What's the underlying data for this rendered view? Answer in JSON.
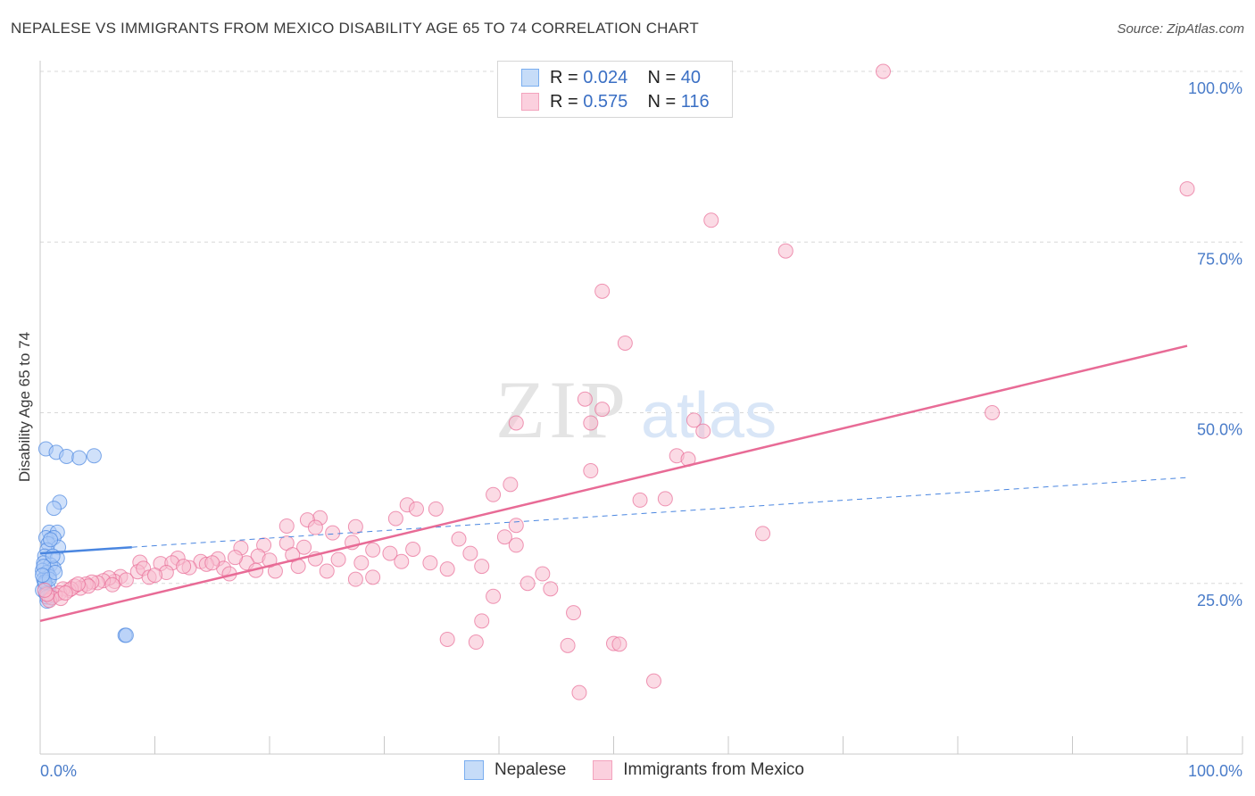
{
  "title": "NEPALESE VS IMMIGRANTS FROM MEXICO DISABILITY AGE 65 TO 74 CORRELATION CHART",
  "source": "Source: ZipAtlas.com",
  "watermark": {
    "zip": "ZIP",
    "atlas": "atlas"
  },
  "legend": {
    "rows": [
      {
        "r_label": "R =",
        "r_value": "0.024",
        "n_label": "N =",
        "n_value": "40",
        "color": "#7aaef0"
      },
      {
        "r_label": "R =",
        "r_value": "0.575",
        "n_label": "N =",
        "n_value": "116",
        "color": "#f3a3bd"
      }
    ]
  },
  "bottom_legend": [
    {
      "label": "Nepalese",
      "color": "#7aaef0"
    },
    {
      "label": "Immigrants from Mexico",
      "color": "#f3a3bd"
    }
  ],
  "chart_data": {
    "type": "scatter",
    "title": "NEPALESE VS IMMIGRANTS FROM MEXICO DISABILITY AGE 65 TO 74 CORRELATION CHART",
    "xlabel": "",
    "ylabel": "Disability Age 65 to 74",
    "xlim": [
      0,
      100
    ],
    "ylim": [
      0,
      100
    ],
    "x_tick_labels": [
      "0.0%",
      "100.0%"
    ],
    "y_ticks": [
      25,
      50,
      75,
      100
    ],
    "y_tick_labels": [
      "25.0%",
      "50.0%",
      "75.0%",
      "100.0%"
    ],
    "grid": true,
    "legend_position": "top-center",
    "series": [
      {
        "name": "Nepalese",
        "color": "#4a86e0",
        "fill": "#a9c9f5",
        "trend": {
          "x": [
            0,
            8
          ],
          "y": [
            29.4,
            30.3
          ],
          "dashed_to_x": 100,
          "dashed_to_y": 40.5
        },
        "points": [
          [
            0.5,
            44.7
          ],
          [
            1.4,
            44.2
          ],
          [
            2.3,
            43.6
          ],
          [
            3.4,
            43.4
          ],
          [
            4.7,
            43.7
          ],
          [
            1.7,
            36.9
          ],
          [
            1.2,
            36.0
          ],
          [
            0.8,
            32.5
          ],
          [
            1.5,
            32.5
          ],
          [
            0.5,
            31.7
          ],
          [
            1.2,
            31.7
          ],
          [
            0.7,
            30.8
          ],
          [
            1.6,
            30.3
          ],
          [
            0.6,
            29.9
          ],
          [
            0.4,
            29.0
          ],
          [
            1.5,
            28.7
          ],
          [
            0.3,
            28.0
          ],
          [
            0.9,
            27.7
          ],
          [
            1.2,
            27.2
          ],
          [
            0.2,
            26.9
          ],
          [
            0.6,
            26.6
          ],
          [
            0.8,
            26.0
          ],
          [
            0.3,
            25.6
          ],
          [
            0.4,
            24.9
          ],
          [
            0.7,
            24.3
          ],
          [
            0.2,
            24.0
          ],
          [
            0.5,
            23.5
          ],
          [
            0.9,
            23.2
          ],
          [
            1.0,
            22.9
          ],
          [
            0.6,
            22.4
          ],
          [
            7.4,
            17.4
          ],
          [
            7.5,
            17.4
          ],
          [
            0.9,
            31.4
          ],
          [
            1.1,
            29.0
          ],
          [
            0.3,
            27.5
          ],
          [
            0.4,
            25.2
          ],
          [
            0.8,
            25.6
          ],
          [
            1.3,
            26.6
          ],
          [
            0.2,
            26.2
          ],
          [
            0.6,
            23.0
          ]
        ]
      },
      {
        "name": "Immigrants from Mexico",
        "color": "#e86b96",
        "fill": "#f7bdd0",
        "trend": {
          "x": [
            0,
            100
          ],
          "y": [
            19.5,
            59.8
          ]
        },
        "points": [
          [
            73.5,
            100.0
          ],
          [
            100.0,
            82.8
          ],
          [
            58.5,
            78.2
          ],
          [
            65.0,
            73.7
          ],
          [
            49.0,
            67.8
          ],
          [
            51.0,
            60.2
          ],
          [
            47.5,
            52.0
          ],
          [
            41.5,
            48.5
          ],
          [
            49.0,
            50.5
          ],
          [
            57.0,
            48.9
          ],
          [
            48.0,
            48.5
          ],
          [
            57.8,
            47.3
          ],
          [
            83.0,
            50.0
          ],
          [
            55.5,
            43.7
          ],
          [
            56.5,
            43.2
          ],
          [
            48.0,
            41.5
          ],
          [
            41.0,
            39.5
          ],
          [
            39.5,
            38.0
          ],
          [
            52.3,
            37.2
          ],
          [
            54.5,
            37.4
          ],
          [
            32.0,
            36.5
          ],
          [
            32.8,
            35.9
          ],
          [
            34.5,
            35.9
          ],
          [
            31.0,
            34.5
          ],
          [
            24.4,
            34.6
          ],
          [
            23.3,
            34.3
          ],
          [
            21.5,
            33.4
          ],
          [
            27.5,
            33.3
          ],
          [
            24.0,
            33.2
          ],
          [
            25.5,
            32.4
          ],
          [
            41.5,
            33.5
          ],
          [
            40.5,
            31.8
          ],
          [
            63.0,
            32.3
          ],
          [
            36.5,
            31.5
          ],
          [
            27.2,
            31.0
          ],
          [
            21.5,
            30.9
          ],
          [
            19.5,
            30.6
          ],
          [
            17.5,
            30.2
          ],
          [
            23.0,
            30.3
          ],
          [
            32.5,
            30.0
          ],
          [
            29.0,
            29.9
          ],
          [
            30.5,
            29.4
          ],
          [
            37.5,
            29.4
          ],
          [
            41.5,
            30.6
          ],
          [
            22.0,
            29.2
          ],
          [
            24.0,
            28.6
          ],
          [
            19.0,
            29.0
          ],
          [
            15.5,
            28.6
          ],
          [
            14.0,
            28.2
          ],
          [
            12.0,
            28.7
          ],
          [
            8.7,
            28.1
          ],
          [
            10.5,
            27.9
          ],
          [
            8.5,
            26.7
          ],
          [
            11.5,
            28.0
          ],
          [
            14.5,
            27.8
          ],
          [
            13.0,
            27.3
          ],
          [
            16.0,
            27.2
          ],
          [
            18.0,
            28.0
          ],
          [
            16.5,
            26.4
          ],
          [
            11.0,
            26.6
          ],
          [
            12.5,
            27.5
          ],
          [
            9.0,
            27.2
          ],
          [
            17.0,
            28.8
          ],
          [
            26.0,
            28.5
          ],
          [
            28.0,
            28.0
          ],
          [
            31.5,
            28.2
          ],
          [
            34.0,
            28.0
          ],
          [
            20.5,
            26.8
          ],
          [
            25.0,
            26.8
          ],
          [
            27.5,
            25.6
          ],
          [
            29.0,
            25.9
          ],
          [
            35.5,
            27.1
          ],
          [
            38.5,
            27.5
          ],
          [
            43.8,
            26.4
          ],
          [
            42.5,
            25.0
          ],
          [
            39.5,
            23.1
          ],
          [
            44.5,
            24.2
          ],
          [
            46.5,
            20.7
          ],
          [
            38.5,
            19.5
          ],
          [
            35.5,
            16.8
          ],
          [
            38.0,
            16.4
          ],
          [
            46.0,
            15.9
          ],
          [
            50.0,
            16.2
          ],
          [
            50.5,
            16.1
          ],
          [
            47.0,
            9.0
          ],
          [
            53.5,
            10.7
          ],
          [
            7.0,
            26.0
          ],
          [
            6.5,
            25.3
          ],
          [
            6.0,
            25.8
          ],
          [
            5.5,
            25.4
          ],
          [
            5.0,
            25.1
          ],
          [
            4.5,
            25.2
          ],
          [
            4.0,
            24.9
          ],
          [
            3.5,
            24.3
          ],
          [
            3.0,
            24.6
          ],
          [
            2.5,
            24.0
          ],
          [
            2.0,
            24.2
          ],
          [
            1.7,
            23.6
          ],
          [
            1.3,
            23.3
          ],
          [
            1.0,
            22.9
          ],
          [
            0.8,
            22.5
          ],
          [
            0.6,
            23.4
          ],
          [
            0.4,
            24.0
          ],
          [
            1.8,
            22.8
          ],
          [
            2.7,
            24.2
          ],
          [
            9.5,
            25.9
          ],
          [
            10.0,
            26.2
          ],
          [
            7.5,
            25.5
          ],
          [
            6.3,
            24.8
          ],
          [
            4.2,
            24.6
          ],
          [
            3.3,
            24.9
          ],
          [
            2.2,
            23.6
          ],
          [
            15.0,
            28.0
          ],
          [
            20.0,
            28.4
          ],
          [
            22.5,
            27.5
          ],
          [
            18.8,
            26.9
          ]
        ]
      }
    ]
  }
}
